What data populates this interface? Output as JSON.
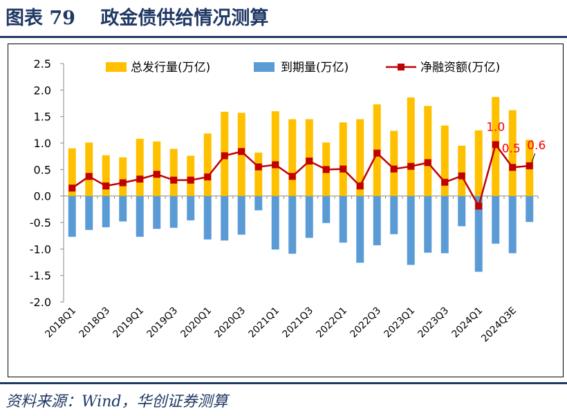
{
  "header": {
    "title": "图表 79　 政金债供给情况测算"
  },
  "footer": {
    "source": "资料来源：Wind，华创证券测算"
  },
  "colors": {
    "issuance": "#ffc000",
    "maturity": "#5b9bd5",
    "net": "#c00000",
    "rule": "#1f3864",
    "data_label": "#ff0000"
  },
  "chart_data": {
    "type": "bar",
    "ylim": [
      -2.0,
      2.5
    ],
    "yticks": [
      "2.5",
      "2.0",
      "1.5",
      "1.0",
      "0.5",
      "0.0",
      "-0.5",
      "-1.0",
      "-1.5",
      "-2.0"
    ],
    "categories": [
      "2018Q1",
      "2018Q2",
      "2018Q3",
      "2018Q4",
      "2019Q1",
      "2019Q2",
      "2019Q3",
      "2019Q4",
      "2020Q1",
      "2020Q2",
      "2020Q3",
      "2020Q4",
      "2021Q1",
      "2021Q2",
      "2021Q3",
      "2021Q4",
      "2022Q1",
      "2022Q2",
      "2022Q3",
      "2022Q4",
      "2023Q1",
      "2023Q2",
      "2023Q3",
      "2023Q4",
      "2024Q1",
      "2024Q2",
      "2024Q3E",
      "2024Q4E"
    ],
    "tick_labels": [
      "2018Q1",
      "",
      "2018Q3",
      "",
      "2019Q1",
      "",
      "2019Q3",
      "",
      "2020Q1",
      "",
      "2020Q3",
      "",
      "2021Q1",
      "",
      "2021Q3",
      "",
      "2022Q1",
      "",
      "2022Q3",
      "",
      "2023Q1",
      "",
      "2023Q3",
      "",
      "2024Q1",
      "",
      "2024Q3E",
      ""
    ],
    "legend_position": "top",
    "series": [
      {
        "name": "总发行量(万亿)",
        "type": "bar",
        "values": [
          0.9,
          1.01,
          0.77,
          0.73,
          1.08,
          1.03,
          0.89,
          0.76,
          1.18,
          1.59,
          1.57,
          0.82,
          1.6,
          1.45,
          1.45,
          1.01,
          1.39,
          1.45,
          1.73,
          1.23,
          1.86,
          1.7,
          1.33,
          0.95,
          1.24,
          1.87,
          1.62,
          1.06
        ]
      },
      {
        "name": "到期量(万亿)",
        "type": "bar",
        "values": [
          -0.77,
          -0.64,
          -0.59,
          -0.48,
          -0.77,
          -0.62,
          -0.6,
          -0.46,
          -0.82,
          -0.84,
          -0.73,
          -0.27,
          -1.01,
          -1.09,
          -0.79,
          -0.51,
          -0.88,
          -1.26,
          -0.93,
          -0.72,
          -1.3,
          -1.07,
          -1.08,
          -0.57,
          -1.43,
          -0.9,
          -1.08,
          -0.49
        ]
      },
      {
        "name": "净融资额(万亿)",
        "type": "line",
        "values": [
          0.15,
          0.37,
          0.19,
          0.25,
          0.32,
          0.41,
          0.3,
          0.3,
          0.36,
          0.76,
          0.84,
          0.55,
          0.59,
          0.37,
          0.66,
          0.5,
          0.51,
          0.19,
          0.81,
          0.51,
          0.56,
          0.63,
          0.26,
          0.38,
          -0.19,
          0.97,
          0.54,
          0.57
        ]
      }
    ],
    "annotations": [
      {
        "index": 25,
        "text": "1.0"
      },
      {
        "index": 26,
        "text": "0.5"
      },
      {
        "index": 27,
        "text": "0.6"
      }
    ]
  }
}
